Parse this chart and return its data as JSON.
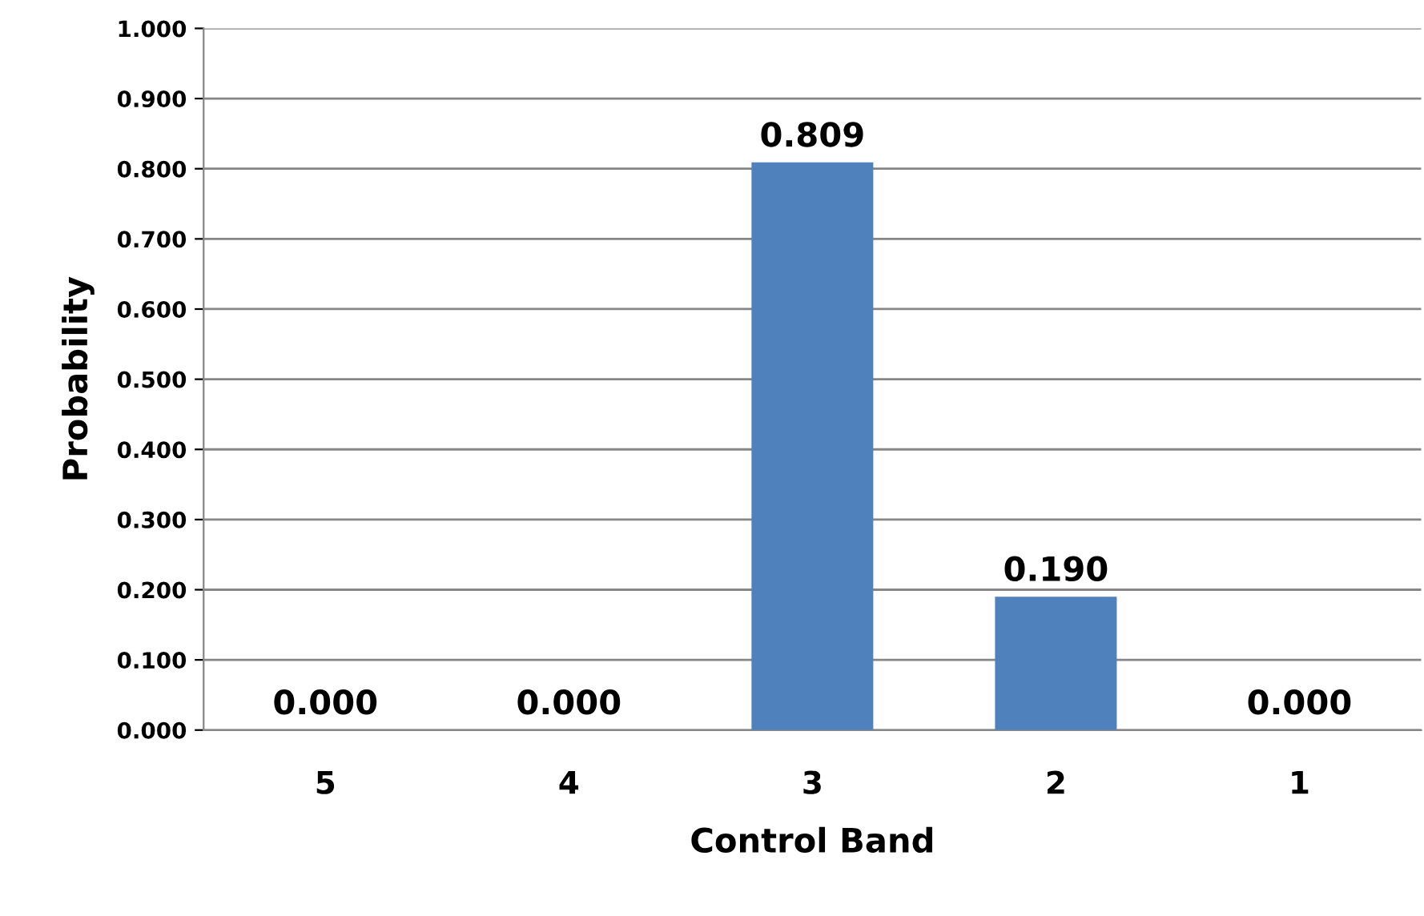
{
  "chart_data": {
    "type": "bar",
    "xlabel": "Control Band",
    "ylabel": "Probability",
    "categories": [
      "5",
      "4",
      "3",
      "2",
      "1"
    ],
    "values": [
      0.0,
      0.0,
      0.809,
      0.19,
      0.0
    ],
    "value_labels": [
      "0.000",
      "0.000",
      "0.809",
      "0.190",
      "0.000"
    ],
    "color": "#4f81bd",
    "ylim": [
      0,
      1
    ],
    "yticks": [
      {
        "value": 0,
        "label": "0.000"
      },
      {
        "value": 0.1,
        "label": "0.100"
      },
      {
        "value": 0.2,
        "label": "0.200"
      },
      {
        "value": 0.3,
        "label": "0.300"
      },
      {
        "value": 0.4,
        "label": "0.400"
      },
      {
        "value": 0.5,
        "label": "0.500"
      },
      {
        "value": 0.6,
        "label": "0.600"
      },
      {
        "value": 0.7,
        "label": "0.700"
      },
      {
        "value": 0.8,
        "label": "0.800"
      },
      {
        "value": 0.9,
        "label": "0.900"
      },
      {
        "value": 1.0,
        "label": "1.000"
      }
    ],
    "grid": "y"
  }
}
